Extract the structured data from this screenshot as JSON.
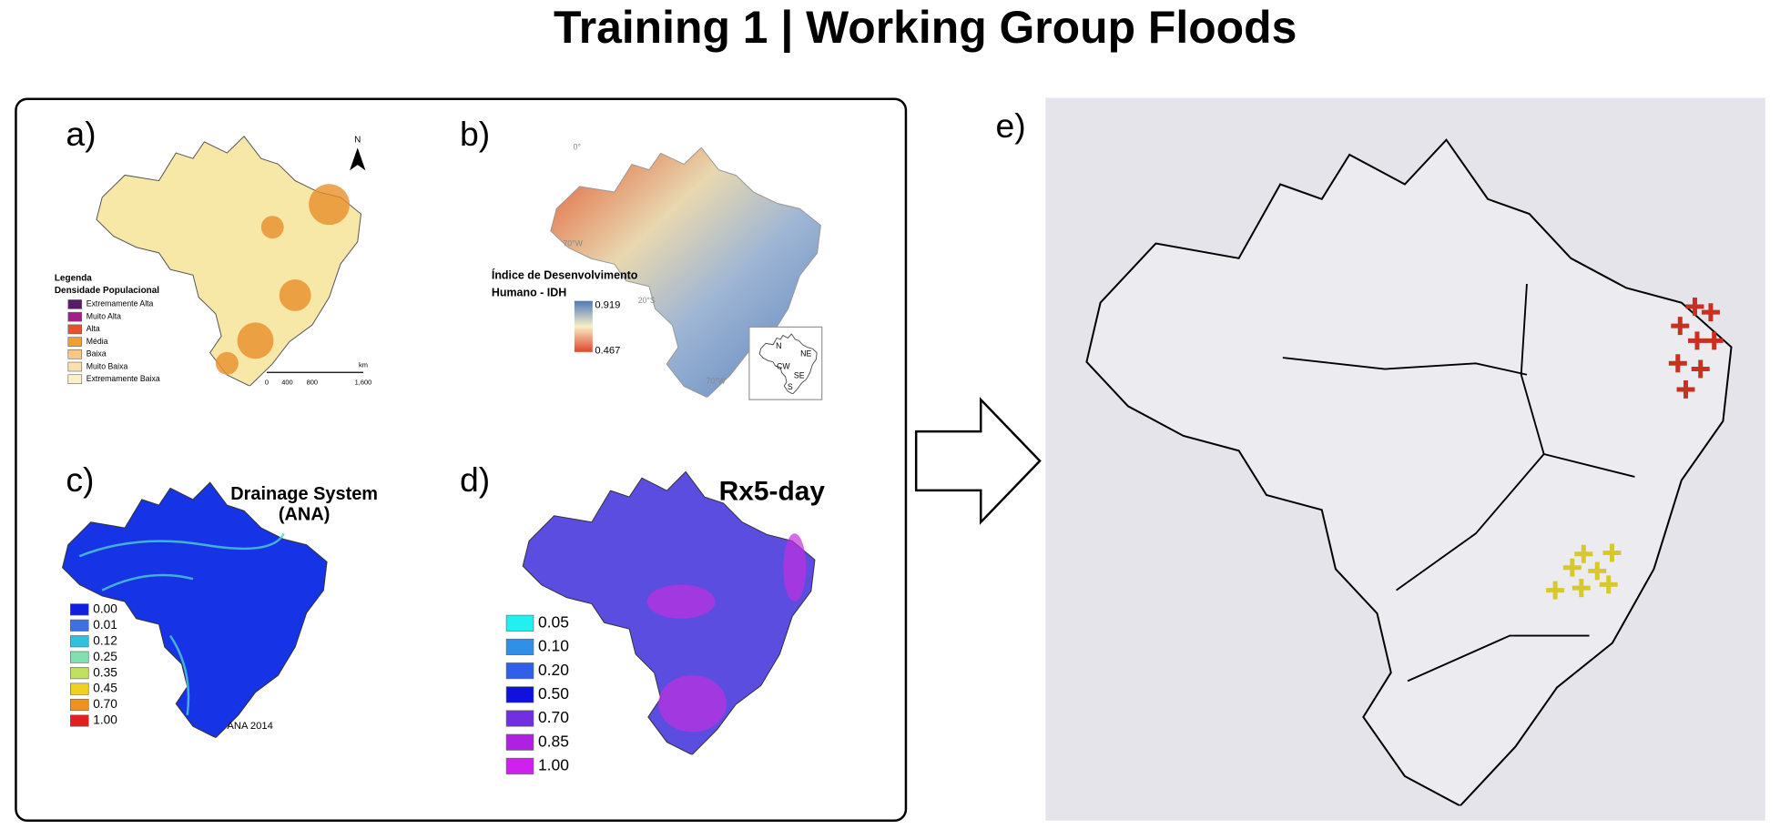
{
  "title": "Training 1 | Working Group Floods",
  "panel_a": {
    "label": "a)",
    "north": "N",
    "legend_title": "Legenda",
    "legend_subtitle": "Densidade Populacional",
    "legend": [
      "Extremamente Alta",
      "Muito Alta",
      "Alta",
      "Média",
      "Baixa",
      "Muito Baixa",
      "Extremamente Baixa"
    ],
    "scale": [
      "0",
      "400",
      "800",
      "1,600"
    ],
    "scale_unit": "km"
  },
  "panel_b": {
    "label": "b)",
    "legend_title": [
      "Índice de Desenvolvimento",
      "Humano  - IDH"
    ],
    "max": "0.919",
    "min": "0.467",
    "regions": [
      "N",
      "NE",
      "CW",
      "SE",
      "S"
    ],
    "graticule": [
      "0°",
      "70°W",
      "20°S",
      "70°W"
    ]
  },
  "panel_c": {
    "label": "c)",
    "title": [
      "Drainage System",
      "(ANA)"
    ],
    "legend": [
      "0.00",
      "0.01",
      "0.12",
      "0.25",
      "0.35",
      "0.45",
      "0.70",
      "1.00"
    ],
    "source": "ANA 2014"
  },
  "panel_d": {
    "label": "d)",
    "title": "Rx5-day",
    "legend": [
      "0.05",
      "0.10",
      "0.20",
      "0.50",
      "0.70",
      "0.85",
      "1.00"
    ]
  },
  "panel_e": {
    "label": "e)"
  }
}
